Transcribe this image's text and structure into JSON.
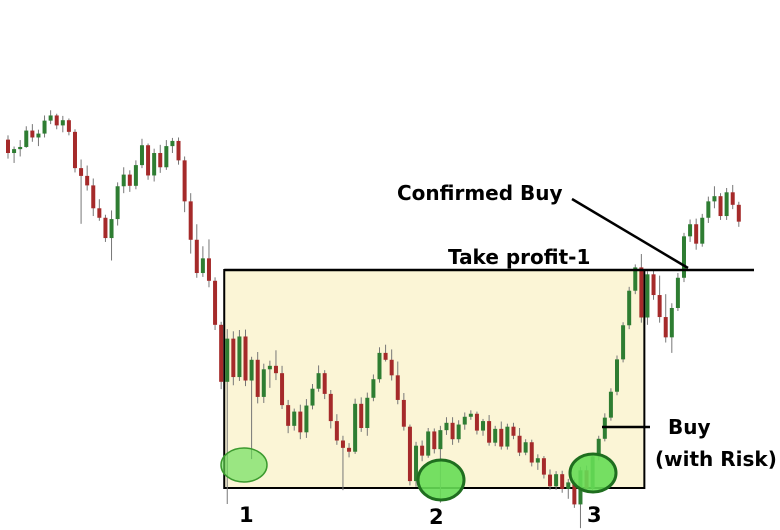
{
  "chart_data": {
    "type": "candlestick",
    "title": "",
    "xlabel": "",
    "ylabel": "",
    "grid": false,
    "colors": {
      "up": "#2e7d32",
      "down": "#a52a2a",
      "zone_fill": "#fbf5d6",
      "marker_fill": "#66dd55"
    },
    "candles": [
      {
        "o": 80.7,
        "h": 81.7,
        "l": 76.3,
        "c": 77.6
      },
      {
        "o": 77.6,
        "h": 79.1,
        "l": 75.3,
        "c": 78.5
      },
      {
        "o": 78.5,
        "h": 80.6,
        "l": 76.8,
        "c": 79.0
      },
      {
        "o": 79.0,
        "h": 83.8,
        "l": 78.8,
        "c": 82.8
      },
      {
        "o": 82.8,
        "h": 84.3,
        "l": 80.2,
        "c": 81.2
      },
      {
        "o": 81.2,
        "h": 83.0,
        "l": 79.2,
        "c": 82.1
      },
      {
        "o": 82.1,
        "h": 86.3,
        "l": 81.2,
        "c": 85.1
      },
      {
        "o": 85.1,
        "h": 87.5,
        "l": 84.3,
        "c": 86.3
      },
      {
        "o": 86.3,
        "h": 86.7,
        "l": 83.1,
        "c": 84.0
      },
      {
        "o": 84.0,
        "h": 86.2,
        "l": 82.4,
        "c": 85.2
      },
      {
        "o": 85.2,
        "h": 85.6,
        "l": 81.7,
        "c": 82.5
      },
      {
        "o": 82.5,
        "h": 83.1,
        "l": 73.1,
        "c": 74.1
      },
      {
        "o": 74.1,
        "h": 76.1,
        "l": 61.2,
        "c": 72.3
      },
      {
        "o": 72.3,
        "h": 74.7,
        "l": 68.9,
        "c": 70.1
      },
      {
        "o": 70.1,
        "h": 71.7,
        "l": 63.0,
        "c": 64.8
      },
      {
        "o": 64.8,
        "h": 66.9,
        "l": 61.9,
        "c": 62.6
      },
      {
        "o": 62.6,
        "h": 63.3,
        "l": 57.0,
        "c": 57.9
      },
      {
        "o": 57.9,
        "h": 64.3,
        "l": 52.7,
        "c": 62.3
      },
      {
        "o": 62.3,
        "h": 70.8,
        "l": 60.8,
        "c": 69.9
      },
      {
        "o": 69.9,
        "h": 74.3,
        "l": 68.3,
        "c": 72.6
      },
      {
        "o": 72.6,
        "h": 73.6,
        "l": 68.6,
        "c": 70.0
      },
      {
        "o": 70.0,
        "h": 75.9,
        "l": 69.2,
        "c": 74.8
      },
      {
        "o": 74.8,
        "h": 80.9,
        "l": 74.1,
        "c": 79.4
      },
      {
        "o": 79.4,
        "h": 79.8,
        "l": 71.4,
        "c": 72.4
      },
      {
        "o": 72.4,
        "h": 78.6,
        "l": 71.0,
        "c": 77.6
      },
      {
        "o": 77.6,
        "h": 79.5,
        "l": 73.0,
        "c": 74.3
      },
      {
        "o": 74.3,
        "h": 80.6,
        "l": 73.7,
        "c": 79.2
      },
      {
        "o": 79.2,
        "h": 81.1,
        "l": 77.6,
        "c": 80.4
      },
      {
        "o": 80.4,
        "h": 81.2,
        "l": 74.9,
        "c": 75.9
      },
      {
        "o": 75.9,
        "h": 76.8,
        "l": 63.9,
        "c": 66.4
      },
      {
        "o": 66.4,
        "h": 68.3,
        "l": 54.3,
        "c": 57.5
      },
      {
        "o": 57.5,
        "h": 61.1,
        "l": 48.7,
        "c": 49.8
      },
      {
        "o": 49.8,
        "h": 56.0,
        "l": 48.9,
        "c": 53.2
      },
      {
        "o": 53.2,
        "h": 57.6,
        "l": 46.5,
        "c": 48.0
      },
      {
        "o": 48.0,
        "h": 48.8,
        "l": 36.6,
        "c": 37.8
      },
      {
        "o": 37.8,
        "h": 38.5,
        "l": 22.9,
        "c": 24.6
      },
      {
        "o": 24.6,
        "h": 36.8,
        "l": -3.7,
        "c": 34.6
      },
      {
        "o": 34.6,
        "h": 36.3,
        "l": 23.8,
        "c": 25.7
      },
      {
        "o": 25.7,
        "h": 36.6,
        "l": 24.8,
        "c": 35.1
      },
      {
        "o": 35.1,
        "h": 36.7,
        "l": 23.6,
        "c": 24.9
      },
      {
        "o": 24.9,
        "h": 30.4,
        "l": 6.7,
        "c": 29.7
      },
      {
        "o": 29.7,
        "h": 31.5,
        "l": 19.6,
        "c": 21.1
      },
      {
        "o": 21.1,
        "h": 28.8,
        "l": 19.7,
        "c": 27.5
      },
      {
        "o": 27.5,
        "h": 29.5,
        "l": 23.2,
        "c": 28.3
      },
      {
        "o": 28.3,
        "h": 31.9,
        "l": 25.0,
        "c": 26.6
      },
      {
        "o": 26.6,
        "h": 28.3,
        "l": 18.3,
        "c": 19.2
      },
      {
        "o": 19.2,
        "h": 20.4,
        "l": 12.7,
        "c": 14.4
      },
      {
        "o": 14.4,
        "h": 18.4,
        "l": 13.3,
        "c": 17.7
      },
      {
        "o": 17.7,
        "h": 19.3,
        "l": 11.3,
        "c": 12.9
      },
      {
        "o": 12.9,
        "h": 20.6,
        "l": 11.6,
        "c": 19.1
      },
      {
        "o": 19.1,
        "h": 24.1,
        "l": 18.2,
        "c": 23.0
      },
      {
        "o": 23.0,
        "h": 28.4,
        "l": 22.3,
        "c": 26.6
      },
      {
        "o": 26.6,
        "h": 27.3,
        "l": 20.6,
        "c": 21.8
      },
      {
        "o": 21.8,
        "h": 22.7,
        "l": 13.8,
        "c": 15.5
      },
      {
        "o": 15.5,
        "h": 17.1,
        "l": 10.0,
        "c": 11.0
      },
      {
        "o": 11.0,
        "h": 12.1,
        "l": -0.5,
        "c": 9.3
      },
      {
        "o": 9.3,
        "h": 10.4,
        "l": 7.1,
        "c": 8.4
      },
      {
        "o": 8.4,
        "h": 20.7,
        "l": 7.9,
        "c": 19.5
      },
      {
        "o": 19.5,
        "h": 21.0,
        "l": 13.0,
        "c": 13.9
      },
      {
        "o": 13.9,
        "h": 22.1,
        "l": 12.1,
        "c": 20.9
      },
      {
        "o": 20.9,
        "h": 26.3,
        "l": 20.1,
        "c": 25.2
      },
      {
        "o": 25.2,
        "h": 32.6,
        "l": 24.4,
        "c": 31.3
      },
      {
        "o": 31.3,
        "h": 33.2,
        "l": 29.3,
        "c": 29.7
      },
      {
        "o": 29.7,
        "h": 32.1,
        "l": 24.9,
        "c": 26.1
      },
      {
        "o": 26.1,
        "h": 29.3,
        "l": 19.4,
        "c": 20.4
      },
      {
        "o": 20.4,
        "h": 22.0,
        "l": 13.3,
        "c": 14.2
      },
      {
        "o": 14.2,
        "h": 14.7,
        "l": 0.6,
        "c": 1.6
      },
      {
        "o": 1.6,
        "h": 10.7,
        "l": 0.3,
        "c": 9.8
      },
      {
        "o": 9.8,
        "h": 11.0,
        "l": 6.2,
        "c": 7.5
      },
      {
        "o": 7.5,
        "h": 13.9,
        "l": 7.0,
        "c": 13.1
      },
      {
        "o": 13.1,
        "h": 13.8,
        "l": 8.0,
        "c": 9.0
      },
      {
        "o": 9.0,
        "h": 14.4,
        "l": -3.4,
        "c": 13.4
      },
      {
        "o": 13.4,
        "h": 16.4,
        "l": 12.3,
        "c": 15.1
      },
      {
        "o": 15.1,
        "h": 16.4,
        "l": 10.0,
        "c": 11.3
      },
      {
        "o": 11.3,
        "h": 15.7,
        "l": 10.5,
        "c": 14.7
      },
      {
        "o": 14.7,
        "h": 17.5,
        "l": 13.5,
        "c": 16.5
      },
      {
        "o": 16.5,
        "h": 18.0,
        "l": 15.8,
        "c": 17.2
      },
      {
        "o": 17.2,
        "h": 17.7,
        "l": 12.4,
        "c": 13.3
      },
      {
        "o": 13.3,
        "h": 16.0,
        "l": 12.1,
        "c": 15.5
      },
      {
        "o": 15.5,
        "h": 16.9,
        "l": 9.8,
        "c": 10.5
      },
      {
        "o": 10.5,
        "h": 14.4,
        "l": 9.7,
        "c": 13.7
      },
      {
        "o": 13.7,
        "h": 15.4,
        "l": 8.9,
        "c": 9.6
      },
      {
        "o": 9.6,
        "h": 14.9,
        "l": 8.9,
        "c": 14.2
      },
      {
        "o": 14.2,
        "h": 15.1,
        "l": 11.3,
        "c": 12.1
      },
      {
        "o": 12.1,
        "h": 13.9,
        "l": 7.4,
        "c": 8.2
      },
      {
        "o": 8.2,
        "h": 11.3,
        "l": 7.6,
        "c": 10.6
      },
      {
        "o": 10.6,
        "h": 11.2,
        "l": 5.0,
        "c": 5.9
      },
      {
        "o": 5.9,
        "h": 7.8,
        "l": 4.2,
        "c": 6.9
      },
      {
        "o": 6.9,
        "h": 7.4,
        "l": 2.2,
        "c": 3.1
      },
      {
        "o": 3.1,
        "h": 4.3,
        "l": -0.4,
        "c": 0.4
      },
      {
        "o": 0.4,
        "h": 3.9,
        "l": -0.4,
        "c": 3.2
      },
      {
        "o": 3.2,
        "h": 4.0,
        "l": -1.1,
        "c": -0.2
      },
      {
        "o": -0.2,
        "h": 2.1,
        "l": -2.5,
        "c": 1.3
      },
      {
        "o": 1.3,
        "h": 2.1,
        "l": -4.6,
        "c": -3.8
      },
      {
        "o": -3.8,
        "h": 4.9,
        "l": -9.3,
        "c": 4.1
      },
      {
        "o": 4.1,
        "h": 5.2,
        "l": -0.8,
        "c": -0.1
      },
      {
        "o": -0.1,
        "h": 8.1,
        "l": -1.0,
        "c": 7.3
      },
      {
        "o": 7.3,
        "h": 12.1,
        "l": 6.4,
        "c": 11.4
      },
      {
        "o": 11.4,
        "h": 17.3,
        "l": 10.8,
        "c": 16.3
      },
      {
        "o": 16.3,
        "h": 23.1,
        "l": 15.6,
        "c": 22.3
      },
      {
        "o": 22.3,
        "h": 30.7,
        "l": 21.5,
        "c": 29.8
      },
      {
        "o": 29.8,
        "h": 38.4,
        "l": 29.1,
        "c": 37.7
      },
      {
        "o": 37.7,
        "h": 46.6,
        "l": 36.8,
        "c": 45.7
      },
      {
        "o": 45.7,
        "h": 51.8,
        "l": 44.9,
        "c": 51.1
      },
      {
        "o": 51.1,
        "h": 54.2,
        "l": 38.3,
        "c": 39.5
      },
      {
        "o": 39.5,
        "h": 50.2,
        "l": 37.8,
        "c": 49.5
      },
      {
        "o": 49.5,
        "h": 50.4,
        "l": 43.6,
        "c": 44.7
      },
      {
        "o": 44.7,
        "h": 49.2,
        "l": 38.3,
        "c": 39.6
      },
      {
        "o": 39.6,
        "h": 44.9,
        "l": 33.7,
        "c": 34.9
      },
      {
        "o": 34.9,
        "h": 42.8,
        "l": 31.3,
        "c": 41.7
      },
      {
        "o": 41.7,
        "h": 49.8,
        "l": 41.0,
        "c": 48.7
      },
      {
        "o": 48.7,
        "h": 59.1,
        "l": 47.7,
        "c": 58.3
      },
      {
        "o": 58.3,
        "h": 62.2,
        "l": 57.0,
        "c": 61.1
      },
      {
        "o": 61.1,
        "h": 62.4,
        "l": 55.2,
        "c": 56.6
      },
      {
        "o": 56.6,
        "h": 63.5,
        "l": 55.9,
        "c": 62.6
      },
      {
        "o": 62.6,
        "h": 67.5,
        "l": 61.4,
        "c": 66.4
      },
      {
        "o": 66.4,
        "h": 69.9,
        "l": 64.8,
        "c": 67.6
      },
      {
        "o": 67.6,
        "h": 68.3,
        "l": 62.1,
        "c": 63.0
      },
      {
        "o": 63.0,
        "h": 69.5,
        "l": 62.1,
        "c": 68.5
      },
      {
        "o": 68.5,
        "h": 70.2,
        "l": 64.6,
        "c": 65.6
      },
      {
        "o": 65.6,
        "h": 66.3,
        "l": 60.5,
        "c": 61.7
      }
    ],
    "zone": {
      "top": 50.5,
      "bottom": 0.0,
      "start": 36,
      "end": 104
    },
    "take_profit_level": 50.5,
    "annotations": {
      "confirmed": "Confirmed Buy",
      "take_profit": "Take profit-1",
      "buy": "Buy",
      "buy_sub": "(with Risk)",
      "bottom1": "1",
      "bottom2": "2",
      "bottom3": "3"
    }
  }
}
